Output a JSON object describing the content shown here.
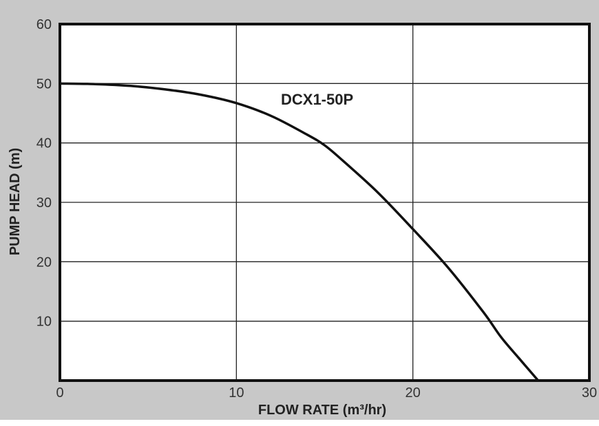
{
  "chart_data": {
    "type": "line",
    "xlabel": "FLOW RATE (m³/hr)",
    "ylabel": "PUMP HEAD (m)",
    "xlim": [
      0,
      30
    ],
    "ylim": [
      0,
      60
    ],
    "x_ticks": [
      "0",
      "10",
      "20",
      "30"
    ],
    "y_ticks": [
      "10",
      "20",
      "30",
      "40",
      "50",
      "60"
    ],
    "grid": true,
    "series": [
      {
        "name": "DCX1-50P",
        "x": [
          0,
          2,
          4,
          6,
          8,
          10,
          12,
          14,
          15,
          16,
          18,
          20,
          22,
          24,
          25,
          26,
          27.1
        ],
        "y": [
          50,
          49.9,
          49.6,
          49,
          48.1,
          46.7,
          44.5,
          41.4,
          39.6,
          37.1,
          31.7,
          25.5,
          19,
          11.5,
          7.3,
          3.8,
          0
        ]
      }
    ]
  },
  "colors": {
    "background": "#c8c8c8",
    "plot_area": "#ffffff",
    "line": "#111111",
    "grid": "#222222"
  }
}
